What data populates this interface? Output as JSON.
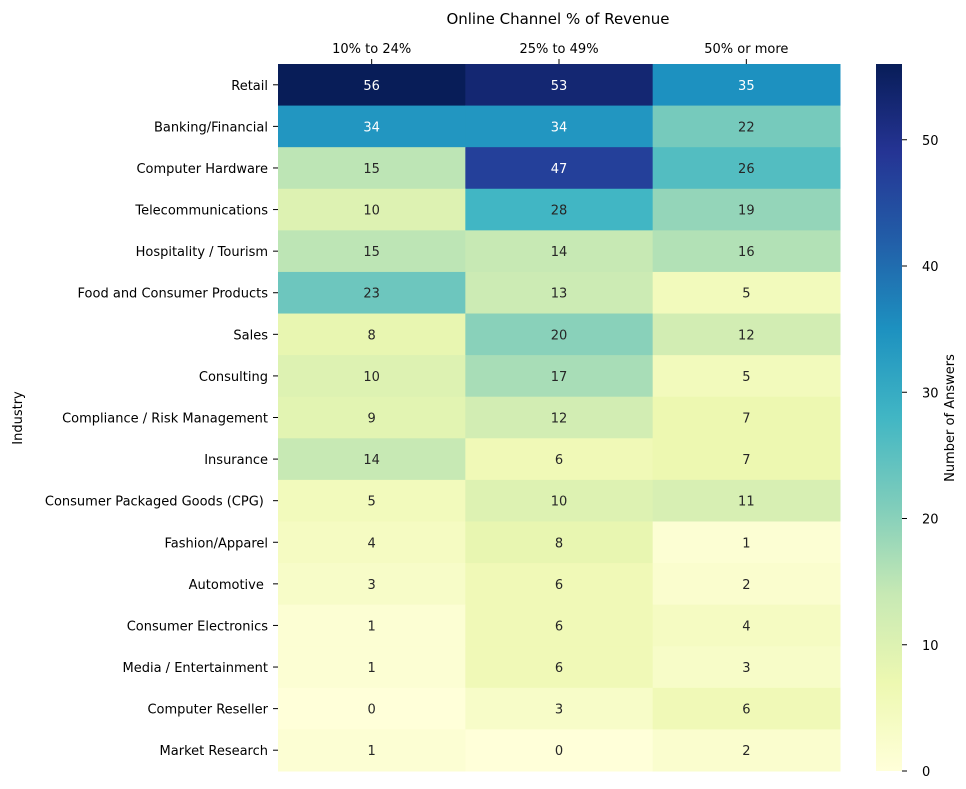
{
  "chart_data": {
    "type": "heatmap",
    "title": "Online Channel % of Revenue",
    "ylabel": "Industry",
    "colorbar_label": "Number of Answers",
    "colorbar_ticks": [
      0,
      10,
      20,
      30,
      40,
      50
    ],
    "vmin": 0,
    "vmax": 56,
    "colormap": "YlGnBu",
    "columns": [
      "10% to 24%",
      "25% to 49%",
      "50% or more"
    ],
    "rows": [
      "Retail",
      "Banking/Financial",
      "Computer Hardware",
      "Telecommunications",
      "Hospitality / Tourism",
      "Food and Consumer Products",
      "Sales",
      "Consulting",
      "Compliance / Risk Management",
      "Insurance",
      "Consumer Packaged Goods (CPG) ",
      "Fashion/Apparel",
      "Automotive ",
      "Consumer Electronics",
      "Media / Entertainment",
      "Computer Reseller",
      "Market Research"
    ],
    "values": [
      [
        56,
        53,
        35
      ],
      [
        34,
        34,
        22
      ],
      [
        15,
        47,
        26
      ],
      [
        10,
        28,
        19
      ],
      [
        15,
        14,
        16
      ],
      [
        23,
        13,
        5
      ],
      [
        8,
        20,
        12
      ],
      [
        10,
        17,
        5
      ],
      [
        9,
        12,
        7
      ],
      [
        14,
        6,
        7
      ],
      [
        5,
        10,
        11
      ],
      [
        4,
        8,
        1
      ],
      [
        3,
        6,
        2
      ],
      [
        1,
        6,
        4
      ],
      [
        1,
        6,
        3
      ],
      [
        0,
        3,
        6
      ],
      [
        1,
        0,
        2
      ]
    ]
  }
}
